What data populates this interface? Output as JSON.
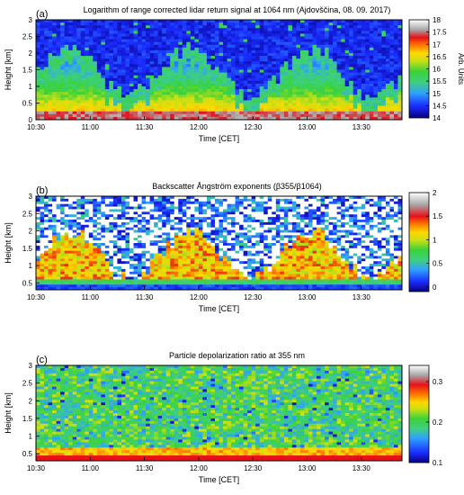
{
  "chart_data": [
    {
      "type": "heatmap",
      "panel_label": "(a)",
      "title": "Logarithm of range corrected lidar return signal at 1064 nm (Ajdovščina, 08. 09. 2017)",
      "xlabel": "Time [CET]",
      "ylabel": "Height [km]",
      "x_ticks": [
        "10:30",
        "11:00",
        "11:30",
        "12:00",
        "12:30",
        "13:00",
        "13:30"
      ],
      "y_ticks": [
        "0",
        "0.5",
        "1",
        "1.5",
        "2",
        "2.5",
        "3"
      ],
      "ylim": [
        0,
        3
      ],
      "colorbar": {
        "label": "Arb. Units",
        "range": [
          14,
          18
        ],
        "ticks": [
          "14",
          "14.5",
          "15",
          "15.5",
          "16",
          "16.5",
          "17",
          "17.5",
          "18"
        ]
      }
    },
    {
      "type": "heatmap",
      "panel_label": "(b)",
      "title": "Backscatter Ångström exponents (β355/β1064)",
      "xlabel": "Time [CET]",
      "ylabel": "Height [km]",
      "x_ticks": [
        "10:30",
        "11:00",
        "11:30",
        "12:00",
        "12:30",
        "13:00",
        "13:30"
      ],
      "y_ticks": [
        "0.5",
        "1",
        "1.5",
        "2",
        "2.5",
        "3"
      ],
      "ylim": [
        0.3,
        3
      ],
      "colorbar": {
        "label": "",
        "range": [
          -0.1,
          2
        ],
        "ticks": [
          "0",
          "0.5",
          "1",
          "1.5",
          "2"
        ]
      }
    },
    {
      "type": "heatmap",
      "panel_label": "(c)",
      "title": "Particle depolarization ratio at 355 nm",
      "xlabel": "Time [CET]",
      "ylabel": "Height [km]",
      "x_ticks": [
        "10:30",
        "11:00",
        "11:30",
        "12:00",
        "12:30",
        "13:00",
        "13:30"
      ],
      "y_ticks": [
        "0.5",
        "1",
        "1.5",
        "2",
        "2.5",
        "3"
      ],
      "ylim": [
        0.3,
        3
      ],
      "colorbar": {
        "label": "",
        "range": [
          0.1,
          0.34
        ],
        "ticks": [
          "0.1",
          "0.2",
          "0.3"
        ]
      }
    }
  ]
}
